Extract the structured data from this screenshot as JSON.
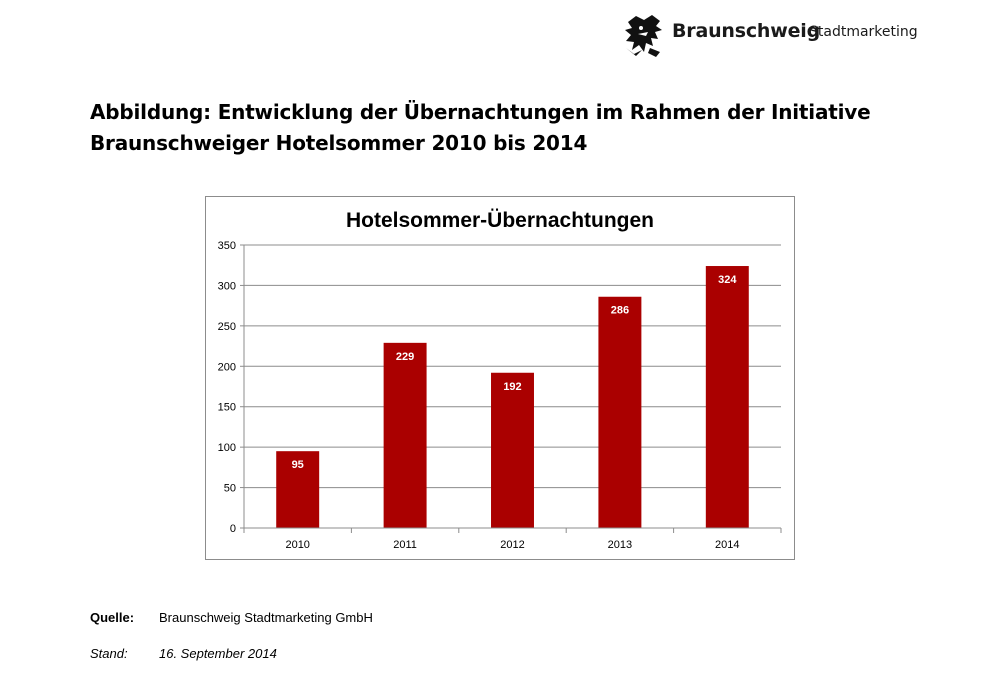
{
  "header": {
    "logo_name": "Braunschweig",
    "logo_sub": "Stadtmarketing",
    "logo_icon": "lion-emblem"
  },
  "page": {
    "title_line1": "Abbildung: Entwicklung der Übernachtungen im Rahmen der Initiative",
    "title_line2": "Braunschweiger Hotelsommer 2010 bis 2014"
  },
  "chart_data": {
    "type": "bar",
    "title": "Hotelsommer-Übernachtungen",
    "categories": [
      "2010",
      "2011",
      "2012",
      "2013",
      "2014"
    ],
    "values": [
      95,
      229,
      192,
      286,
      324
    ],
    "ylim": [
      0,
      350
    ],
    "yticks": [
      0,
      50,
      100,
      150,
      200,
      250,
      300,
      350
    ],
    "xlabel": "",
    "ylabel": "",
    "grid": true,
    "legend": "none",
    "bar_color": "#aa0000"
  },
  "footer": {
    "source_label": "Quelle:",
    "source_value": "Braunschweig Stadtmarketing GmbH",
    "date_label": "Stand:",
    "date_value": "16.  September 2014"
  }
}
